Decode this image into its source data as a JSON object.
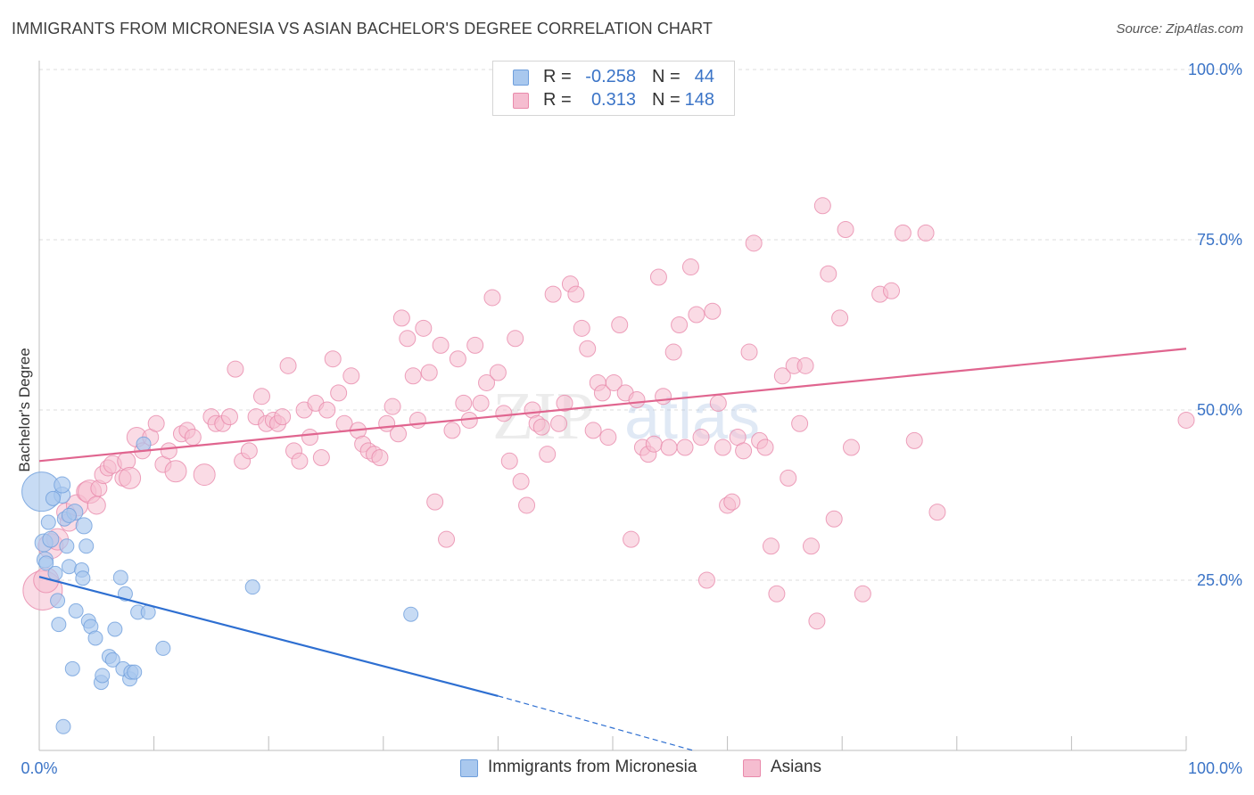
{
  "header": {
    "title": "IMMIGRANTS FROM MICRONESIA VS ASIAN BACHELOR'S DEGREE CORRELATION CHART",
    "source": "Source: ZipAtlas.com"
  },
  "legend_top": {
    "rows": [
      {
        "r_label": "R =",
        "r_value": "-0.258",
        "n_label": "N =",
        "n_value": "44"
      },
      {
        "r_label": "R =",
        "r_value": "0.313",
        "n_label": "N =",
        "n_value": "148"
      }
    ]
  },
  "watermark": {
    "zip": "ZIP",
    "atlas": "atlas"
  },
  "colors": {
    "blue_fill": "#a9c8ee",
    "blue_stroke": "#6f9fdc",
    "blue_line": "#2e6fd1",
    "pink_fill": "#f5bdd0",
    "pink_stroke": "#e98aab",
    "pink_line": "#e0658f",
    "grid": "#dcdcdc",
    "axis_label": "#3b74c7"
  },
  "chart_data": {
    "type": "scatter",
    "title": "IMMIGRANTS FROM MICRONESIA VS ASIAN BACHELOR'S DEGREE CORRELATION CHART",
    "xlabel": "",
    "ylabel": "Bachelor's Degree",
    "xlim": [
      0,
      100
    ],
    "ylim": [
      0,
      100
    ],
    "x_tick_labels": [
      "0.0%",
      "100.0%"
    ],
    "y_tick_labels": [
      "25.0%",
      "50.0%",
      "75.0%",
      "100.0%"
    ],
    "y_ticks": [
      25,
      50,
      75,
      100
    ],
    "grid": true,
    "legend_position": "bottom",
    "series": [
      {
        "name": "Immigrants from Micronesia",
        "r": -0.258,
        "n": 44,
        "trend": {
          "x0": 0,
          "y0": 25.5,
          "x1": 40,
          "y1": 8,
          "dash_to_x": 57,
          "dash_to_y": 0
        },
        "points": [
          [
            0.2,
            38,
            22
          ],
          [
            0.4,
            30.5,
            10
          ],
          [
            0.5,
            28,
            9
          ],
          [
            0.6,
            27.5,
            8
          ],
          [
            1,
            31,
            9
          ],
          [
            1.6,
            22,
            8
          ],
          [
            1.7,
            18.5,
            8
          ],
          [
            2,
            37.5,
            9
          ],
          [
            2,
            39,
            9
          ],
          [
            2.1,
            3.5,
            8
          ],
          [
            2.2,
            34,
            8
          ],
          [
            2.4,
            30,
            8
          ],
          [
            2.6,
            27,
            8
          ],
          [
            2.9,
            12,
            8
          ],
          [
            3.1,
            35,
            9
          ],
          [
            3.2,
            20.5,
            8
          ],
          [
            3.7,
            26.5,
            8
          ],
          [
            3.8,
            25.3,
            8
          ],
          [
            3.9,
            33,
            9
          ],
          [
            4.1,
            30,
            8
          ],
          [
            4.3,
            19,
            8
          ],
          [
            4.5,
            18.2,
            8
          ],
          [
            4.9,
            16.5,
            8
          ],
          [
            5.4,
            10,
            8
          ],
          [
            5.5,
            11,
            8
          ],
          [
            6.1,
            13.8,
            8
          ],
          [
            6.4,
            13.3,
            8
          ],
          [
            6.6,
            17.8,
            8
          ],
          [
            7.1,
            25.4,
            8
          ],
          [
            7.3,
            12,
            8
          ],
          [
            7.5,
            23,
            8
          ],
          [
            7.9,
            10.5,
            8
          ],
          [
            8,
            11.5,
            8
          ],
          [
            8.3,
            11.5,
            8
          ],
          [
            8.6,
            20.3,
            8
          ],
          [
            9.1,
            45,
            8
          ],
          [
            9.5,
            20.3,
            8
          ],
          [
            10.8,
            15,
            8
          ],
          [
            18.6,
            24,
            8
          ],
          [
            32.4,
            20,
            8
          ],
          [
            1.2,
            37,
            8
          ],
          [
            2.6,
            34.5,
            8
          ],
          [
            0.8,
            33.5,
            8
          ],
          [
            1.4,
            26,
            8
          ]
        ]
      },
      {
        "name": "Asians",
        "r": 0.313,
        "n": 148,
        "trend": {
          "x0": 0,
          "y0": 42.5,
          "x1": 100,
          "y1": 59
        },
        "points": [
          [
            0.3,
            23.5,
            22
          ],
          [
            0.6,
            25,
            14
          ],
          [
            1,
            30,
            14
          ],
          [
            1.6,
            31,
            12
          ],
          [
            2.3,
            35,
            10
          ],
          [
            2.6,
            33.5,
            10
          ],
          [
            3.3,
            36,
            12
          ],
          [
            4.1,
            38,
            11
          ],
          [
            4.4,
            38,
            13
          ],
          [
            5,
            36,
            10
          ],
          [
            5.2,
            38.5,
            9
          ],
          [
            5.6,
            40.5,
            10
          ],
          [
            6,
            41.5,
            9
          ],
          [
            6.4,
            42,
            10
          ],
          [
            7.3,
            40,
            9
          ],
          [
            7.6,
            42.5,
            10
          ],
          [
            7.9,
            40,
            12
          ],
          [
            8.5,
            46,
            11
          ],
          [
            9,
            44,
            9
          ],
          [
            9.7,
            46,
            9
          ],
          [
            10.2,
            48,
            9
          ],
          [
            10.8,
            42,
            9
          ],
          [
            11.3,
            44,
            9
          ],
          [
            11.9,
            41,
            12
          ],
          [
            12.4,
            46.5,
            9
          ],
          [
            12.9,
            47,
            9
          ],
          [
            13.4,
            46,
            9
          ],
          [
            14.4,
            40.5,
            12
          ],
          [
            15,
            49,
            9
          ],
          [
            15.4,
            48,
            9
          ],
          [
            16,
            48,
            9
          ],
          [
            16.6,
            49,
            9
          ],
          [
            17.1,
            56,
            9
          ],
          [
            17.7,
            42.5,
            9
          ],
          [
            18.3,
            44,
            9
          ],
          [
            18.9,
            49,
            9
          ],
          [
            19.4,
            52,
            9
          ],
          [
            19.8,
            48,
            9
          ],
          [
            20.4,
            48.5,
            9
          ],
          [
            20.8,
            48,
            9
          ],
          [
            21.2,
            49,
            9
          ],
          [
            21.7,
            56.5,
            9
          ],
          [
            22.2,
            44,
            9
          ],
          [
            22.7,
            42.5,
            9
          ],
          [
            23.1,
            50,
            9
          ],
          [
            23.6,
            46,
            9
          ],
          [
            24.1,
            51,
            9
          ],
          [
            24.6,
            43,
            9
          ],
          [
            25.1,
            50,
            9
          ],
          [
            25.6,
            57.5,
            9
          ],
          [
            26.1,
            52.5,
            9
          ],
          [
            26.6,
            48,
            9
          ],
          [
            27.2,
            55,
            9
          ],
          [
            27.8,
            47,
            9
          ],
          [
            28.2,
            45,
            9
          ],
          [
            28.7,
            44,
            9
          ],
          [
            29.2,
            43.5,
            9
          ],
          [
            29.7,
            43,
            9
          ],
          [
            30.3,
            48,
            9
          ],
          [
            30.8,
            50.5,
            9
          ],
          [
            31.3,
            46.5,
            9
          ],
          [
            31.6,
            63.5,
            9
          ],
          [
            32.1,
            60.5,
            9
          ],
          [
            32.6,
            55,
            9
          ],
          [
            33,
            48.5,
            9
          ],
          [
            33.5,
            62,
            9
          ],
          [
            34,
            55.5,
            9
          ],
          [
            34.5,
            36.5,
            9
          ],
          [
            35,
            59.5,
            9
          ],
          [
            35.5,
            31,
            9
          ],
          [
            36,
            47,
            9
          ],
          [
            36.5,
            57.5,
            9
          ],
          [
            37,
            51,
            9
          ],
          [
            37.5,
            48.5,
            9
          ],
          [
            38,
            59.5,
            9
          ],
          [
            38.5,
            51,
            9
          ],
          [
            39,
            54,
            9
          ],
          [
            39.5,
            66.5,
            9
          ],
          [
            40,
            55.5,
            9
          ],
          [
            40.5,
            49.5,
            9
          ],
          [
            41,
            42.5,
            9
          ],
          [
            41.5,
            60.5,
            9
          ],
          [
            42,
            39.5,
            9
          ],
          [
            42.5,
            36,
            9
          ],
          [
            43,
            50,
            9
          ],
          [
            43.4,
            48,
            9
          ],
          [
            43.8,
            47.5,
            9
          ],
          [
            44.3,
            43.5,
            9
          ],
          [
            44.8,
            67,
            9
          ],
          [
            45.3,
            48,
            9
          ],
          [
            45.8,
            51,
            9
          ],
          [
            46.3,
            68.5,
            9
          ],
          [
            46.8,
            67,
            9
          ],
          [
            47.3,
            62,
            9
          ],
          [
            47.8,
            59,
            9
          ],
          [
            48.3,
            47,
            9
          ],
          [
            48.7,
            54,
            9
          ],
          [
            49.1,
            52.5,
            9
          ],
          [
            49.6,
            46,
            9
          ],
          [
            50.1,
            54,
            9
          ],
          [
            50.6,
            62.5,
            9
          ],
          [
            51.1,
            52.5,
            9
          ],
          [
            51.6,
            31,
            9
          ],
          [
            52.1,
            51.5,
            9
          ],
          [
            52.6,
            44.5,
            9
          ],
          [
            53.1,
            43.5,
            9
          ],
          [
            53.6,
            45,
            9
          ],
          [
            54,
            69.5,
            9
          ],
          [
            54.4,
            52,
            9
          ],
          [
            54.9,
            44.5,
            9
          ],
          [
            55.3,
            58.5,
            9
          ],
          [
            55.8,
            62.5,
            9
          ],
          [
            56.3,
            44.5,
            9
          ],
          [
            56.8,
            71,
            9
          ],
          [
            57.3,
            64,
            9
          ],
          [
            57.7,
            46,
            9
          ],
          [
            58.2,
            25,
            9
          ],
          [
            58.7,
            64.5,
            9
          ],
          [
            59.2,
            51,
            9
          ],
          [
            59.6,
            44.5,
            9
          ],
          [
            60,
            36,
            9
          ],
          [
            60.4,
            36.5,
            9
          ],
          [
            60.9,
            46,
            9
          ],
          [
            61.4,
            44,
            9
          ],
          [
            61.9,
            58.5,
            9
          ],
          [
            62.3,
            74.5,
            9
          ],
          [
            62.8,
            45.5,
            9
          ],
          [
            63.3,
            44.5,
            9
          ],
          [
            63.8,
            30,
            9
          ],
          [
            64.3,
            23,
            9
          ],
          [
            64.8,
            55,
            9
          ],
          [
            65.3,
            40,
            9
          ],
          [
            65.8,
            56.5,
            9
          ],
          [
            66.3,
            48,
            9
          ],
          [
            66.8,
            56.5,
            9
          ],
          [
            67.3,
            30,
            9
          ],
          [
            67.8,
            19,
            9
          ],
          [
            68.3,
            80,
            9
          ],
          [
            68.8,
            70,
            9
          ],
          [
            69.3,
            34,
            9
          ],
          [
            69.8,
            63.5,
            9
          ],
          [
            70.3,
            76.5,
            9
          ],
          [
            70.8,
            44.5,
            9
          ],
          [
            71.8,
            23,
            9
          ],
          [
            73.3,
            67,
            9
          ],
          [
            74.3,
            67.5,
            9
          ],
          [
            75.3,
            76,
            9
          ],
          [
            76.3,
            45.5,
            9
          ],
          [
            77.3,
            76,
            9
          ],
          [
            78.3,
            35,
            9
          ],
          [
            100,
            48.5,
            9
          ]
        ]
      }
    ]
  },
  "legend_bottom": {
    "items": [
      {
        "label": "Immigrants from Micronesia"
      },
      {
        "label": "Asians"
      }
    ]
  }
}
